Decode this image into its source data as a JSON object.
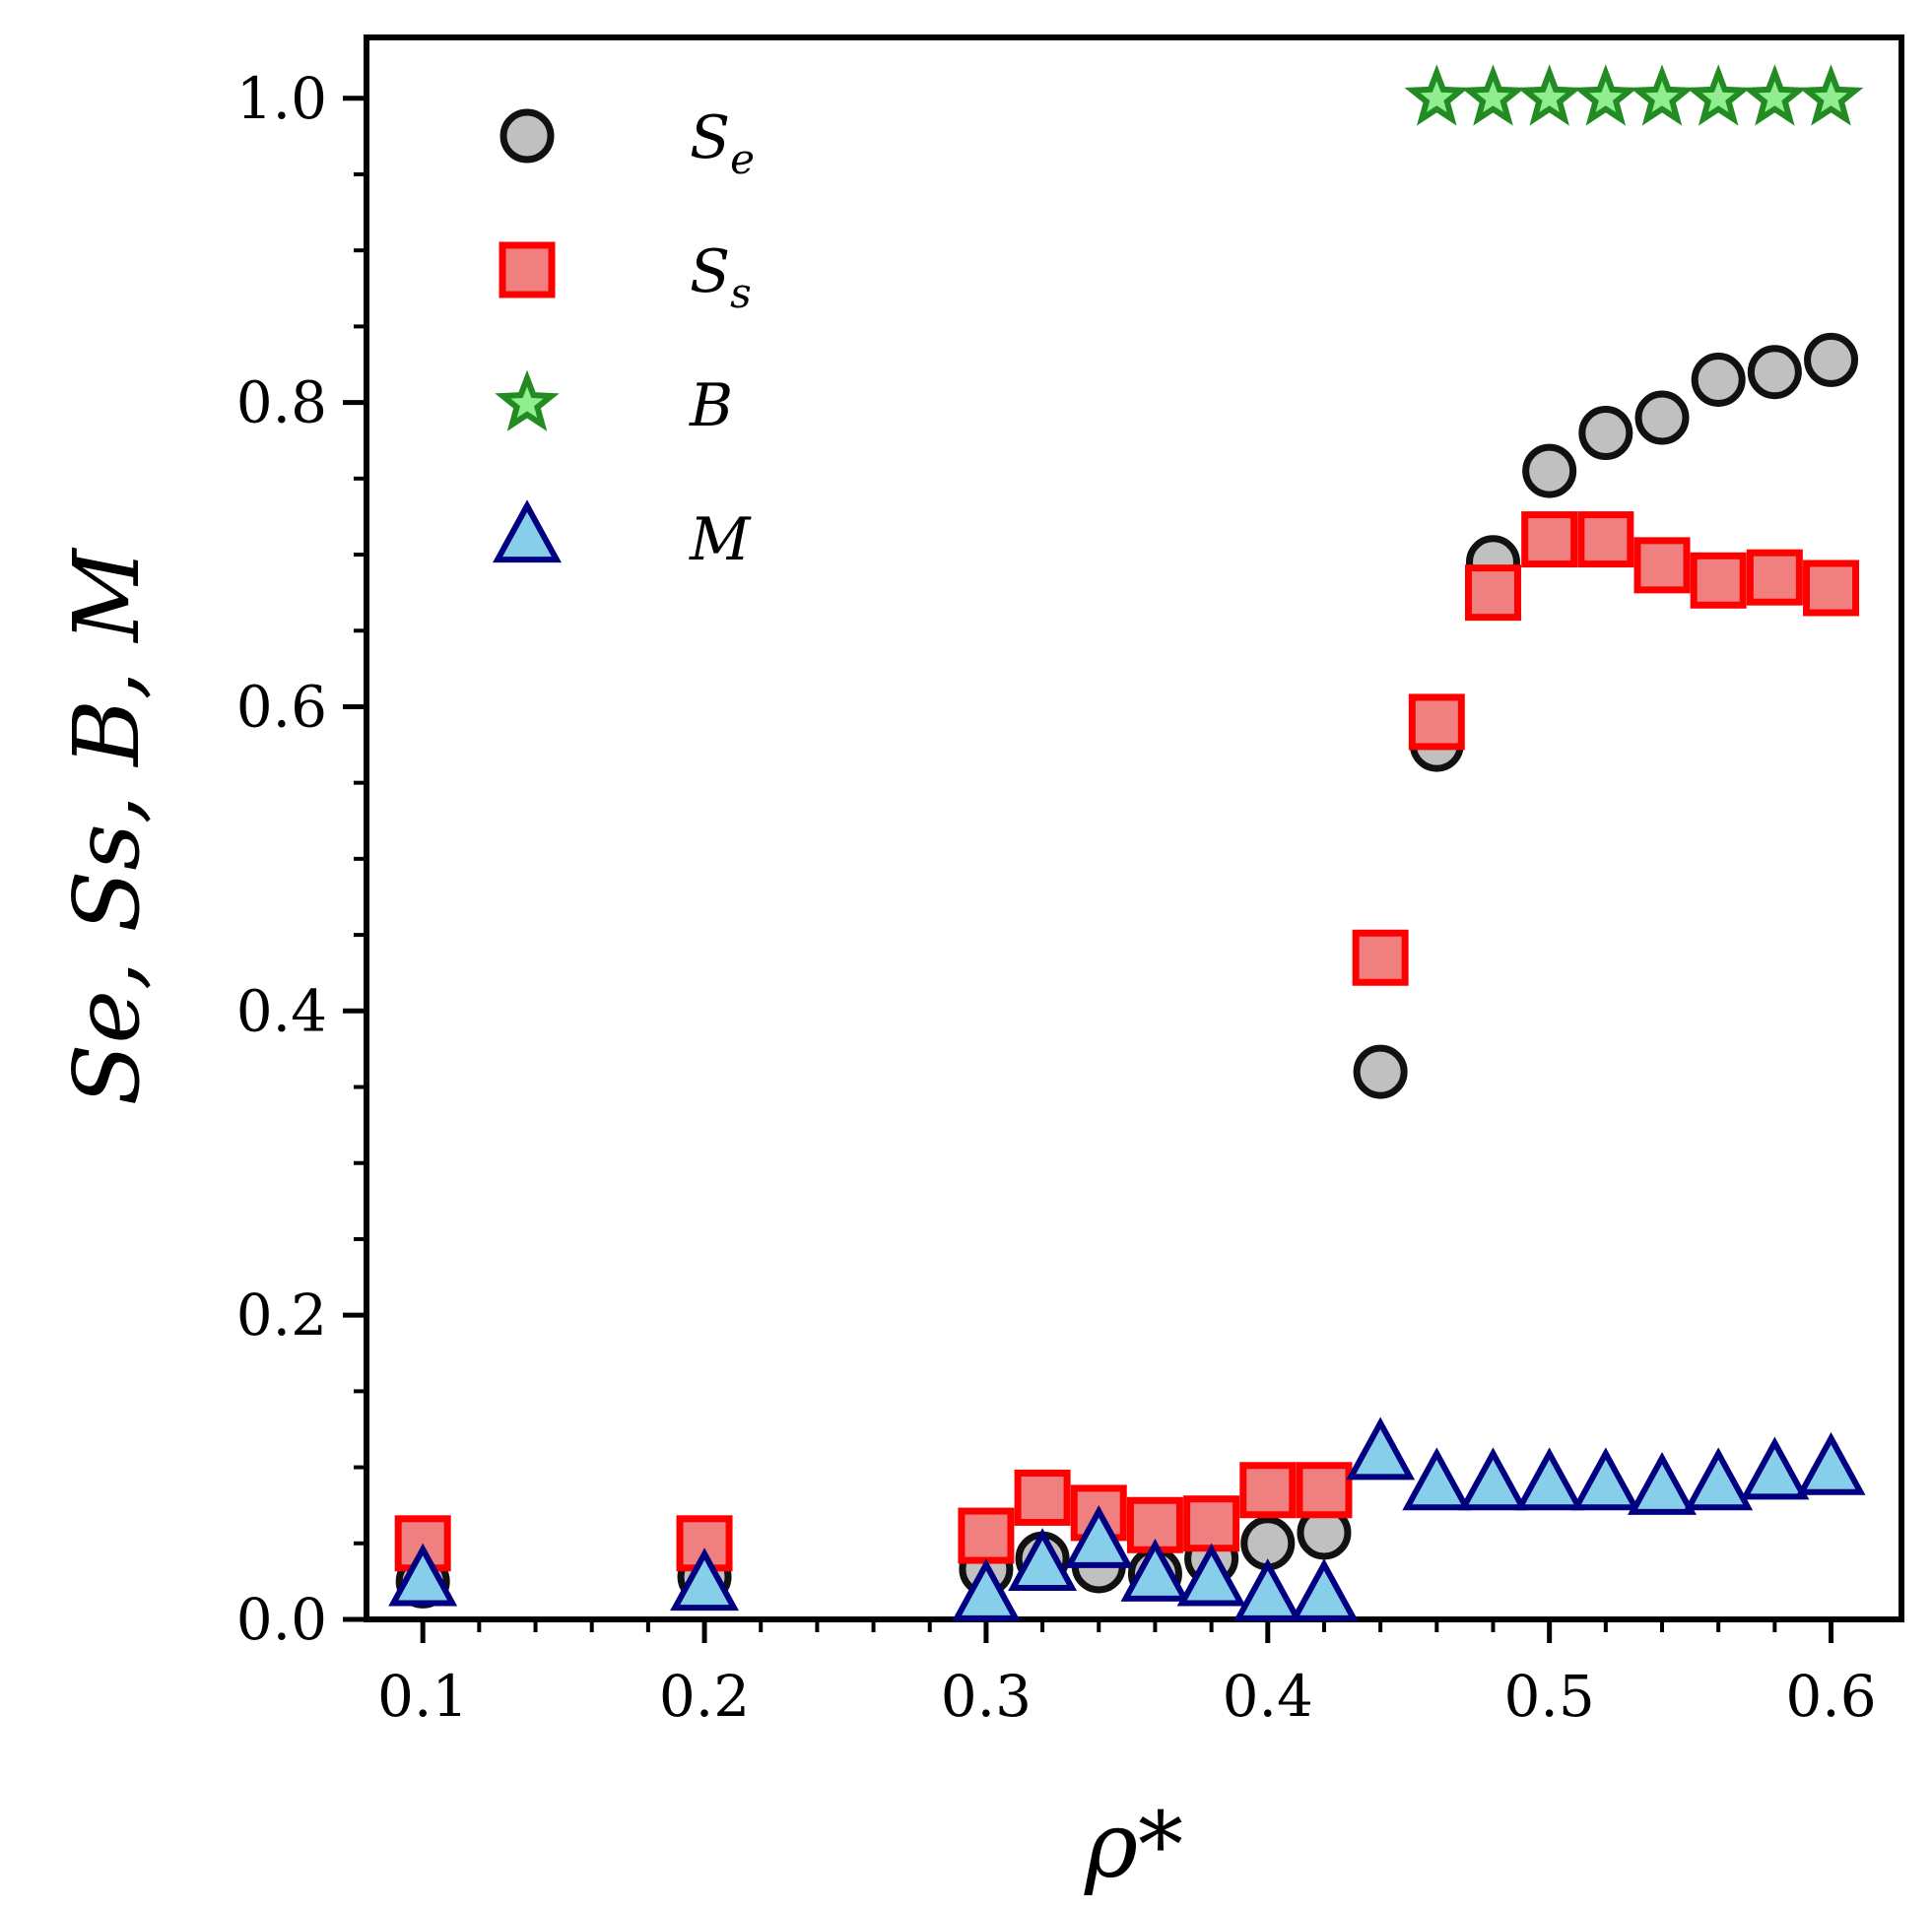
{
  "chart_data": {
    "type": "scatter",
    "title": "",
    "xlabel": "ρ*",
    "ylabel": "Se, Ss, B, M",
    "xlim": [
      0.08,
      0.625
    ],
    "ylim": [
      0.0,
      1.04
    ],
    "xticks": [
      0.1,
      0.2,
      0.3,
      0.4,
      0.5,
      0.6
    ],
    "xtick_labels": [
      "0.1",
      "0.2",
      "0.3",
      "0.4",
      "0.5",
      "0.6"
    ],
    "yticks": [
      0.0,
      0.2,
      0.4,
      0.6,
      0.8,
      1.0
    ],
    "ytick_labels": [
      "0.0",
      "0.2",
      "0.4",
      "0.6",
      "0.8",
      "1.0"
    ],
    "grid": false,
    "legend_position": "top-left",
    "series": [
      {
        "name": "S",
        "subscript": "e",
        "marker": "circle",
        "fill": "#c0c0c0",
        "edge": "#111111",
        "x": [
          0.1,
          0.2,
          0.3,
          0.32,
          0.34,
          0.36,
          0.38,
          0.4,
          0.42,
          0.44,
          0.46,
          0.48,
          0.5,
          0.52,
          0.54,
          0.56,
          0.58,
          0.6
        ],
        "y": [
          0.025,
          0.028,
          0.033,
          0.04,
          0.035,
          0.03,
          0.04,
          0.05,
          0.057,
          0.36,
          0.575,
          0.695,
          0.755,
          0.78,
          0.79,
          0.815,
          0.82,
          0.828
        ]
      },
      {
        "name": "S",
        "subscript": "s",
        "marker": "square",
        "fill": "#f08080",
        "edge": "#ff0000",
        "x": [
          0.1,
          0.2,
          0.3,
          0.32,
          0.34,
          0.36,
          0.38,
          0.4,
          0.42,
          0.44,
          0.46,
          0.48,
          0.5,
          0.52,
          0.54,
          0.56,
          0.58,
          0.6
        ],
        "y": [
          0.05,
          0.05,
          0.055,
          0.08,
          0.07,
          0.062,
          0.063,
          0.085,
          0.085,
          0.435,
          0.59,
          0.675,
          0.71,
          0.71,
          0.693,
          0.683,
          0.685,
          0.678
        ]
      },
      {
        "name": "B",
        "subscript": "",
        "marker": "star",
        "fill": "#90ee90",
        "edge": "#228b22",
        "x": [
          0.46,
          0.48,
          0.5,
          0.52,
          0.54,
          0.56,
          0.58,
          0.6
        ],
        "y": [
          1.0,
          1.0,
          1.0,
          1.0,
          1.0,
          1.0,
          1.0,
          1.0
        ]
      },
      {
        "name": "M",
        "subscript": "",
        "marker": "triangle",
        "fill": "#87ceeb",
        "edge": "#000080",
        "x": [
          0.1,
          0.2,
          0.3,
          0.32,
          0.34,
          0.36,
          0.38,
          0.4,
          0.42,
          0.44,
          0.46,
          0.48,
          0.5,
          0.52,
          0.54,
          0.56,
          0.58,
          0.6
        ],
        "y": [
          0.025,
          0.022,
          0.015,
          0.035,
          0.05,
          0.028,
          0.025,
          0.015,
          0.015,
          0.108,
          0.088,
          0.088,
          0.088,
          0.088,
          0.085,
          0.088,
          0.095,
          0.098
        ]
      }
    ]
  }
}
